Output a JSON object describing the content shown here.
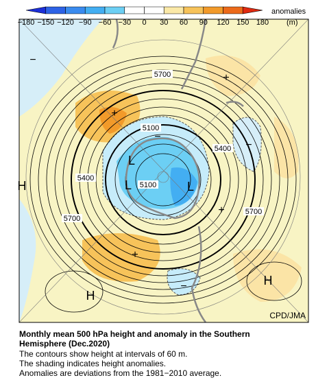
{
  "legend": {
    "title": "anomalies",
    "unit": "(m)",
    "ticks": [
      "−180",
      "−150",
      "−120",
      "−90",
      "−60",
      "−30",
      "0",
      "30",
      "60",
      "90",
      "120",
      "150",
      "180"
    ],
    "colors": [
      "#1c2fd8",
      "#2d62e6",
      "#3a8bef",
      "#43aef2",
      "#6ccff4",
      "#ffffff",
      "#ffffff",
      "#fbe9a8",
      "#f7c35a",
      "#f29a2a",
      "#ec6a1a",
      "#e02a10"
    ]
  },
  "map": {
    "contour_labels": [
      "5700",
      "5100",
      "5400",
      "5400",
      "5100",
      "5700",
      "5700"
    ],
    "symbols": [
      "−",
      "+",
      "+",
      "−",
      "−",
      "L",
      "L",
      "L",
      "H",
      "+",
      "+",
      "H",
      "−",
      "H"
    ],
    "credit": "CPD/JMA"
  },
  "caption": {
    "title": [
      "Monthly mean 500 hPa height and anomaly in the Southern",
      "Hemisphere (Dec.2020)"
    ],
    "lines": [
      "The contours show height at intervals of 60 m.",
      "The shading indicates height anomalies.",
      "Anomalies are deviations from the 1981−2010 average."
    ]
  }
}
